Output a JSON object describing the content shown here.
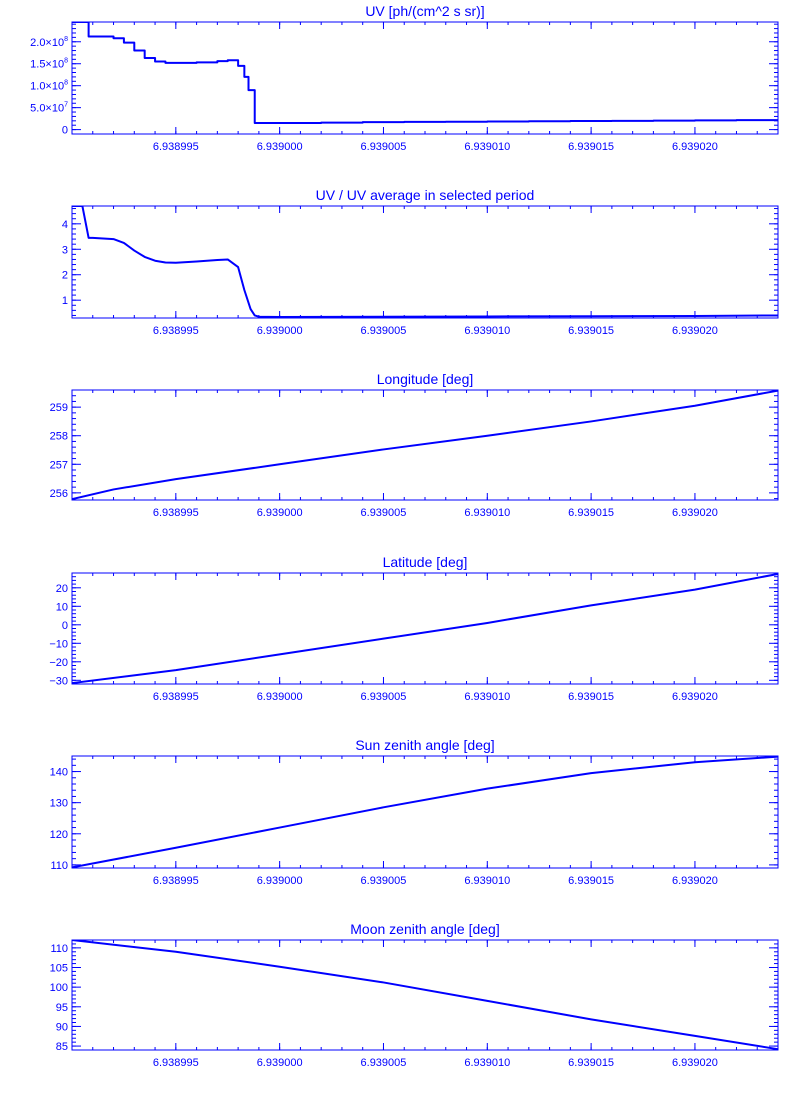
{
  "chart_data": [
    {
      "type": "line",
      "title": "UV [ph/(cm^2 s sr)]",
      "xlim": [
        6.93899,
        6.939024
      ],
      "ylim": [
        -10000000,
        245000000
      ],
      "yticks": [
        {
          "v": 0,
          "mant": "0",
          "exp": ""
        },
        {
          "v": 50000000,
          "mant": "5.0×10",
          "exp": "7"
        },
        {
          "v": 100000000,
          "mant": "1.0×10",
          "exp": "8"
        },
        {
          "v": 150000000,
          "mant": "1.5×10",
          "exp": "8"
        },
        {
          "v": 200000000,
          "mant": "2.0×10",
          "exp": "8"
        }
      ],
      "step": true,
      "x": [
        6.93899,
        6.9389906,
        6.9389908,
        6.938991,
        6.938992,
        6.9389925,
        6.938993,
        6.9389935,
        6.938994,
        6.9389945,
        6.938995,
        6.938996,
        6.938997,
        6.9389975,
        6.938998,
        6.9389983,
        6.9389985,
        6.9389988,
        6.938999,
        6.939,
        6.939002,
        6.939004,
        6.939006,
        6.939008,
        6.93901,
        6.939012,
        6.939014,
        6.939016,
        6.939018,
        6.93902,
        6.939022,
        6.939024
      ],
      "y": [
        245000000,
        245000000,
        212000000,
        212000000,
        208000000,
        198000000,
        180000000,
        163000000,
        155000000,
        152000000,
        152000000,
        153000000,
        156000000,
        158000000,
        145000000,
        120000000,
        90000000,
        15000000,
        15000000,
        15000000,
        16000000,
        17000000,
        17500000,
        18000000,
        18500000,
        19000000,
        19500000,
        20000000,
        20500000,
        21000000,
        21500000,
        22000000
      ]
    },
    {
      "type": "line",
      "title": "UV / UV average in selected period",
      "xlim": [
        6.93899,
        6.939024
      ],
      "ylim": [
        0.3,
        4.7
      ],
      "yticks": [
        {
          "v": 1,
          "mant": "1",
          "exp": ""
        },
        {
          "v": 2,
          "mant": "2",
          "exp": ""
        },
        {
          "v": 3,
          "mant": "3",
          "exp": ""
        },
        {
          "v": 4,
          "mant": "4",
          "exp": ""
        }
      ],
      "step": false,
      "x": [
        6.93899,
        6.9389905,
        6.9389908,
        6.938991,
        6.938992,
        6.9389925,
        6.938993,
        6.9389935,
        6.938994,
        6.9389945,
        6.938995,
        6.938996,
        6.938997,
        6.9389975,
        6.938998,
        6.9389983,
        6.9389986,
        6.9389988,
        6.938999,
        6.939,
        6.939005,
        6.93901,
        6.939015,
        6.93902,
        6.939024
      ],
      "y": [
        4.7,
        4.7,
        3.45,
        3.45,
        3.4,
        3.25,
        2.95,
        2.7,
        2.55,
        2.48,
        2.47,
        2.52,
        2.58,
        2.6,
        2.3,
        1.4,
        0.65,
        0.4,
        0.35,
        0.34,
        0.35,
        0.36,
        0.37,
        0.38,
        0.4
      ]
    },
    {
      "type": "line",
      "title": "Longitude [deg]",
      "xlim": [
        6.93899,
        6.939024
      ],
      "ylim": [
        255.75,
        259.6
      ],
      "yticks": [
        {
          "v": 256,
          "mant": "256",
          "exp": ""
        },
        {
          "v": 257,
          "mant": "257",
          "exp": ""
        },
        {
          "v": 258,
          "mant": "258",
          "exp": ""
        },
        {
          "v": 259,
          "mant": "259",
          "exp": ""
        }
      ],
      "step": false,
      "x": [
        6.93899,
        6.938992,
        6.938995,
        6.939,
        6.939005,
        6.93901,
        6.939015,
        6.93902,
        6.939024
      ],
      "y": [
        255.78,
        256.12,
        256.48,
        257.0,
        257.52,
        258.0,
        258.5,
        259.05,
        259.58
      ]
    },
    {
      "type": "line",
      "title": "Latitude [deg]",
      "xlim": [
        6.93899,
        6.939024
      ],
      "ylim": [
        -32,
        28
      ],
      "yticks": [
        {
          "v": -30,
          "mant": "−30",
          "exp": ""
        },
        {
          "v": -20,
          "mant": "−20",
          "exp": ""
        },
        {
          "v": -10,
          "mant": "−10",
          "exp": ""
        },
        {
          "v": 0,
          "mant": "0",
          "exp": ""
        },
        {
          "v": 10,
          "mant": "10",
          "exp": ""
        },
        {
          "v": 20,
          "mant": "20",
          "exp": ""
        }
      ],
      "step": false,
      "x": [
        6.93899,
        6.938995,
        6.939,
        6.939005,
        6.93901,
        6.939015,
        6.93902,
        6.939024
      ],
      "y": [
        -31.5,
        -24.5,
        -16.0,
        -7.5,
        1.0,
        10.5,
        19.0,
        27.5
      ]
    },
    {
      "type": "line",
      "title": "Sun zenith angle [deg]",
      "xlim": [
        6.93899,
        6.939024
      ],
      "ylim": [
        109,
        145
      ],
      "yticks": [
        {
          "v": 110,
          "mant": "110",
          "exp": ""
        },
        {
          "v": 120,
          "mant": "120",
          "exp": ""
        },
        {
          "v": 130,
          "mant": "130",
          "exp": ""
        },
        {
          "v": 140,
          "mant": "140",
          "exp": ""
        }
      ],
      "step": false,
      "x": [
        6.93899,
        6.938995,
        6.939,
        6.939005,
        6.93901,
        6.939015,
        6.93902,
        6.939024
      ],
      "y": [
        109.2,
        115.5,
        122.0,
        128.5,
        134.5,
        139.5,
        143.0,
        144.8
      ]
    },
    {
      "type": "line",
      "title": "Moon zenith angle [deg]",
      "xlim": [
        6.93899,
        6.939024
      ],
      "ylim": [
        84,
        112
      ],
      "yticks": [
        {
          "v": 85,
          "mant": "85",
          "exp": ""
        },
        {
          "v": 90,
          "mant": "90",
          "exp": ""
        },
        {
          "v": 95,
          "mant": "95",
          "exp": ""
        },
        {
          "v": 100,
          "mant": "100",
          "exp": ""
        },
        {
          "v": 105,
          "mant": "105",
          "exp": ""
        },
        {
          "v": 110,
          "mant": "110",
          "exp": ""
        }
      ],
      "step": false,
      "x": [
        6.93899,
        6.938995,
        6.939,
        6.939005,
        6.93901,
        6.939015,
        6.93902,
        6.939024
      ],
      "y": [
        112.0,
        109.0,
        105.2,
        101.2,
        96.5,
        91.8,
        87.6,
        84.2
      ]
    }
  ],
  "xticks": [
    {
      "v": 6.938995,
      "label": "6.938995"
    },
    {
      "v": 6.939,
      "label": "6.939000"
    },
    {
      "v": 6.939005,
      "label": "6.939005"
    },
    {
      "v": 6.93901,
      "label": "6.939010"
    },
    {
      "v": 6.939015,
      "label": "6.939015"
    },
    {
      "v": 6.93902,
      "label": "6.939020"
    }
  ],
  "colors": {
    "line": "#0000ff",
    "axis": "#0000ff",
    "text": "#0000ff",
    "background": "#ffffff"
  }
}
